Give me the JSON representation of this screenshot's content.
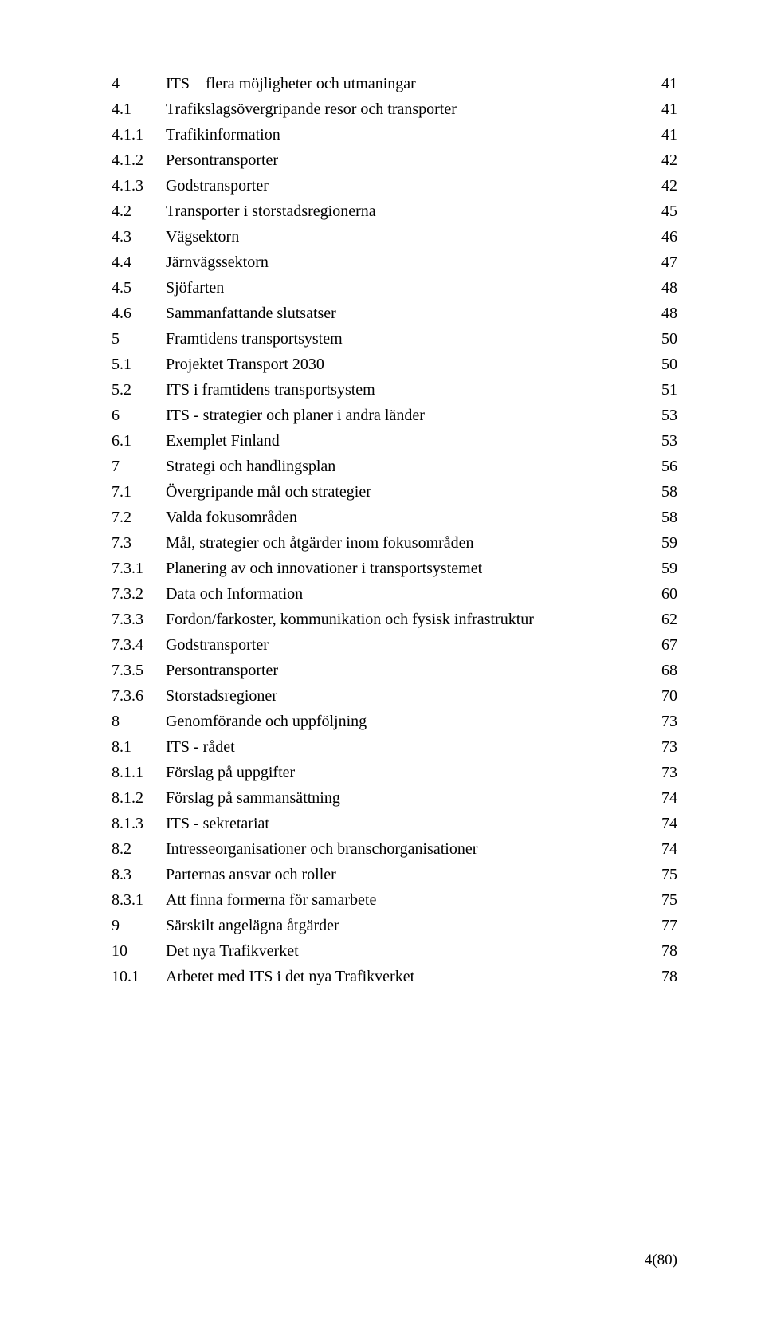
{
  "page_footer": "4(80)",
  "toc": [
    {
      "num": "4",
      "title": "ITS – flera möjligheter och utmaningar",
      "page": "41"
    },
    {
      "num": "4.1",
      "title": "Trafikslagsövergripande resor och transporter",
      "page": "41"
    },
    {
      "num": "4.1.1",
      "title": "Trafikinformation",
      "page": "41"
    },
    {
      "num": "4.1.2",
      "title": "Persontransporter",
      "page": "42"
    },
    {
      "num": "4.1.3",
      "title": "Godstransporter",
      "page": "42"
    },
    {
      "num": "4.2",
      "title": "Transporter i storstadsregionerna",
      "page": "45"
    },
    {
      "num": "4.3",
      "title": "Vägsektorn",
      "page": "46"
    },
    {
      "num": "4.4",
      "title": "Järnvägssektorn",
      "page": "47"
    },
    {
      "num": "4.5",
      "title": "Sjöfarten",
      "page": "48"
    },
    {
      "num": "4.6",
      "title": "Sammanfattande slutsatser",
      "page": "48"
    },
    {
      "num": "5",
      "title": "Framtidens transportsystem",
      "page": "50"
    },
    {
      "num": "5.1",
      "title": "Projektet Transport 2030",
      "page": "50"
    },
    {
      "num": "5.2",
      "title": "ITS i framtidens transportsystem",
      "page": "51"
    },
    {
      "num": "6",
      "title": "ITS - strategier och planer i andra länder",
      "page": "53"
    },
    {
      "num": "6.1",
      "title": "Exemplet Finland",
      "page": "53"
    },
    {
      "num": "7",
      "title": "Strategi och handlingsplan",
      "page": "56"
    },
    {
      "num": "7.1",
      "title": "Övergripande mål och strategier",
      "page": "58"
    },
    {
      "num": "7.2",
      "title": "Valda fokusområden",
      "page": "58"
    },
    {
      "num": "7.3",
      "title": "Mål, strategier och åtgärder inom fokusområden",
      "page": "59"
    },
    {
      "num": "7.3.1",
      "title": "Planering av och innovationer i transportsystemet",
      "page": "59"
    },
    {
      "num": "7.3.2",
      "title": "Data och Information",
      "page": "60"
    },
    {
      "num": "7.3.3",
      "title": "Fordon/farkoster, kommunikation och fysisk infrastruktur",
      "page": "62"
    },
    {
      "num": "7.3.4",
      "title": "Godstransporter",
      "page": "67"
    },
    {
      "num": "7.3.5",
      "title": "Persontransporter",
      "page": "68"
    },
    {
      "num": "7.3.6",
      "title": "Storstadsregioner",
      "page": "70"
    },
    {
      "num": "8",
      "title": "Genomförande och uppföljning",
      "page": "73"
    },
    {
      "num": "8.1",
      "title": "ITS - rådet",
      "page": "73"
    },
    {
      "num": "8.1.1",
      "title": "Förslag på uppgifter",
      "page": "73"
    },
    {
      "num": "8.1.2",
      "title": "Förslag på sammansättning",
      "page": "74"
    },
    {
      "num": "8.1.3",
      "title": "ITS - sekretariat",
      "page": "74"
    },
    {
      "num": "8.2",
      "title": "Intresseorganisationer och branschorganisationer",
      "page": "74"
    },
    {
      "num": "8.3",
      "title": "Parternas ansvar och roller",
      "page": "75"
    },
    {
      "num": "8.3.1",
      "title": "Att finna formerna för samarbete",
      "page": "75"
    },
    {
      "num": "9",
      "title": "Särskilt angelägna åtgärder",
      "page": "77"
    },
    {
      "num": "10",
      "title": "Det nya Trafikverket",
      "page": "78"
    },
    {
      "num": "10.1",
      "title": "Arbetet med ITS i det nya Trafikverket",
      "page": "78"
    }
  ]
}
